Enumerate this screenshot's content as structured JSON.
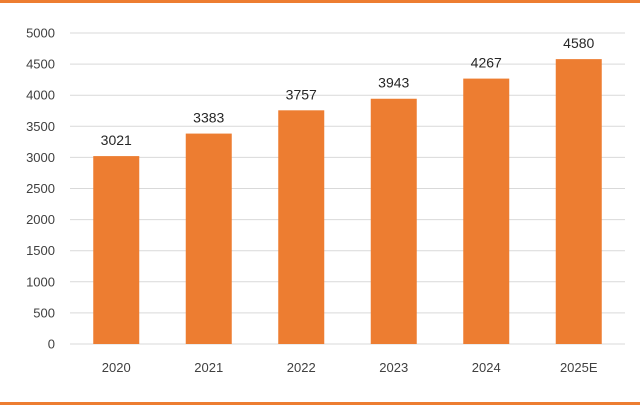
{
  "chart_data": {
    "type": "bar",
    "categories": [
      "2020",
      "2021",
      "2022",
      "2023",
      "2024",
      "2025E"
    ],
    "values": [
      3021,
      3383,
      3757,
      3943,
      4267,
      4580
    ],
    "data_labels": [
      "3021",
      "3383",
      "3757",
      "3943",
      "4267",
      "4580"
    ],
    "ylim": [
      0,
      5000
    ],
    "y_ticks": [
      0,
      500,
      1000,
      1500,
      2000,
      2500,
      3000,
      3500,
      4000,
      4500,
      5000
    ],
    "y_tick_labels": [
      "0",
      "500",
      "1000",
      "1500",
      "2000",
      "2500",
      "3000",
      "3500",
      "4000",
      "4500",
      "5000"
    ],
    "grid": true,
    "legend": false,
    "colors": {
      "bar": "#ED7D31",
      "frame": "#ED7D31",
      "gridline": "#D9D9D9",
      "axis_text": "#404040"
    }
  }
}
